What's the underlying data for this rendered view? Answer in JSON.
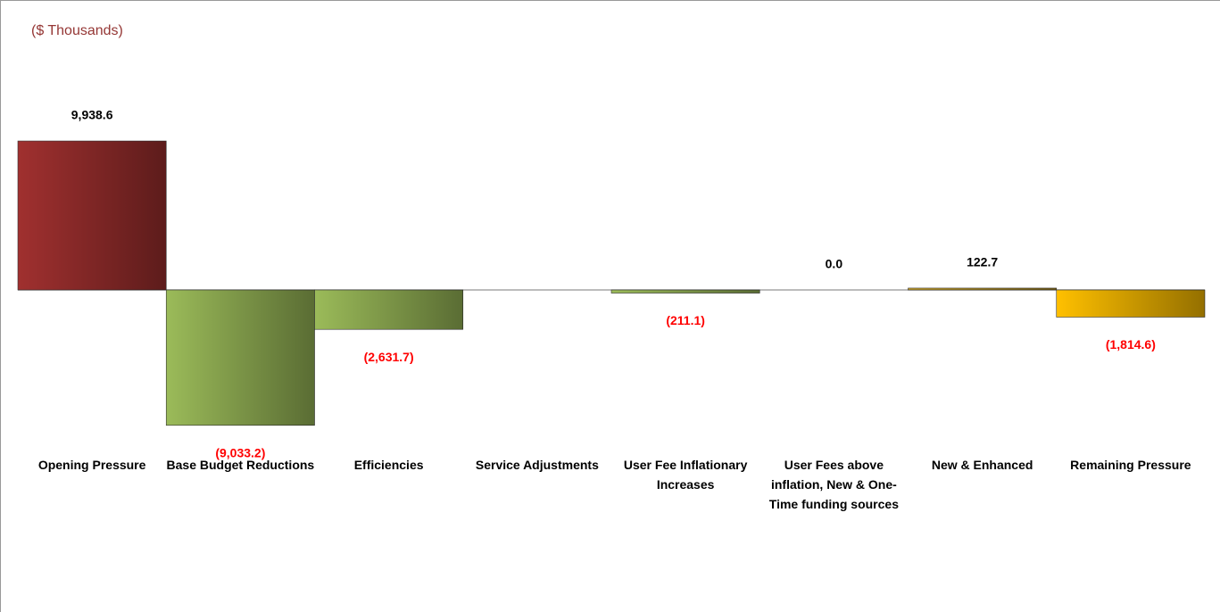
{
  "chart_data": {
    "type": "bar",
    "title": "($ Thousands)",
    "categories": [
      "Opening Pressure",
      "Base Budget Reductions",
      "Efficiencies",
      "Service Adjustments",
      "User Fee Inflationary Increases",
      "User Fees above inflation, New & One-Time funding sources",
      "New & Enhanced",
      "Remaining Pressure"
    ],
    "values": [
      9938.6,
      -9033.2,
      -2631.7,
      null,
      -211.1,
      0.0,
      122.7,
      -1814.6
    ],
    "value_labels": [
      "9,938.6",
      "(9,033.2)",
      "(2,631.7)",
      null,
      "(211.1)",
      "0.0",
      "122.7",
      "(1,814.6)"
    ],
    "colors": [
      "#a0302f",
      "#9bbb59",
      "#9bbb59",
      null,
      "#9bbb59",
      null,
      "#c9a227",
      "#ffc000"
    ],
    "negative_label_color": "#ff0000",
    "ylim": [
      -10000,
      10000
    ]
  }
}
